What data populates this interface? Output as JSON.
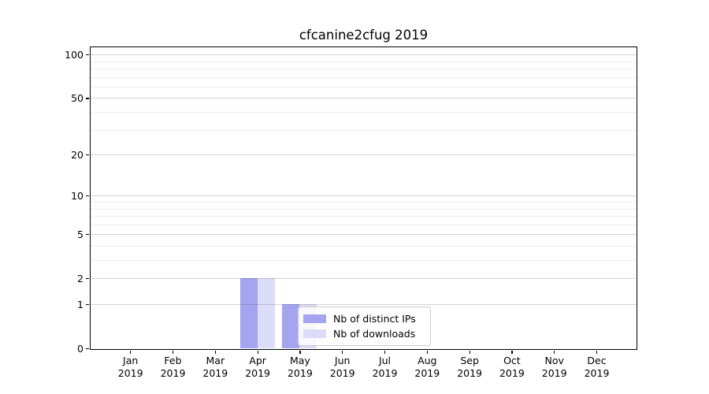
{
  "page": {
    "background": "#ffffff"
  },
  "chart_data": {
    "type": "bar",
    "title": "cfcanine2cfug 2019",
    "categories": [
      "Jan",
      "Feb",
      "Mar",
      "Apr",
      "May",
      "Jun",
      "Jul",
      "Aug",
      "Sep",
      "Oct",
      "Nov",
      "Dec"
    ],
    "category_year": "2019",
    "series": [
      {
        "name": "Nb of distinct IPs",
        "color": "#a4a4f0",
        "values": [
          0,
          0,
          0,
          2,
          1,
          0,
          0,
          0,
          0,
          0,
          0,
          0
        ]
      },
      {
        "name": "Nb of downloads",
        "color": "#dcdcf8",
        "values": [
          0,
          0,
          0,
          2,
          1,
          0,
          0,
          0,
          0,
          0,
          0,
          0
        ]
      }
    ],
    "y_ticks": [
      0,
      1,
      2,
      5,
      10,
      20,
      50,
      100
    ],
    "y_minor_ticks": [
      3,
      4,
      6,
      7,
      8,
      9,
      30,
      40,
      60,
      70,
      80,
      90
    ],
    "yscale": "log1p",
    "ylim": [
      0,
      116
    ],
    "xlabel": "",
    "ylabel": "",
    "grid": "both",
    "legend": {
      "position": "lower center",
      "entries": [
        "Nb of distinct IPs",
        "Nb of downloads"
      ]
    }
  },
  "colors": {
    "bar_distinct_ips": "#a4a4f0",
    "bar_downloads": "#dcdcf8",
    "grid_major": "rgba(0,0,0,0.17)",
    "grid_minor": "rgba(0,0,0,0.065)",
    "axis": "#000000",
    "legend_border": "#cccccc",
    "legend_bg": "rgba(255,255,255,0.8)"
  }
}
